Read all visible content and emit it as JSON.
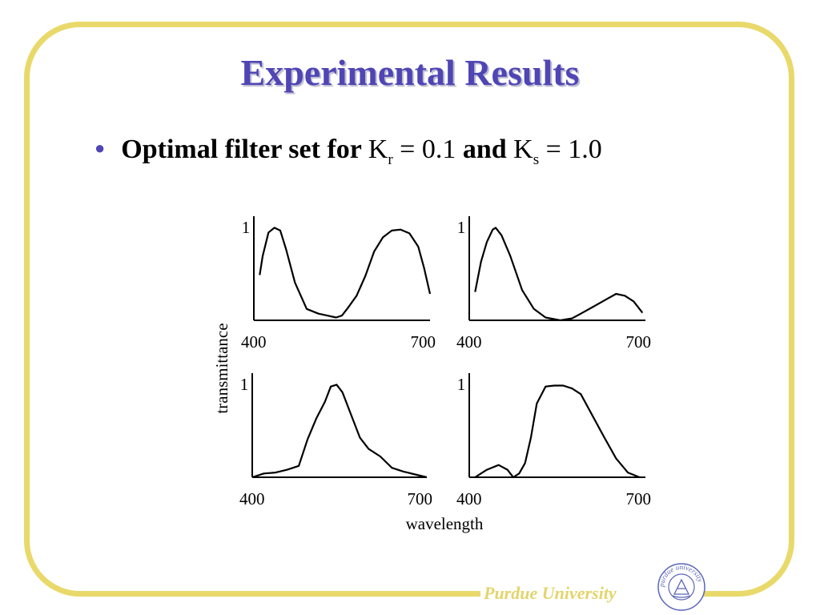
{
  "title": "Experimental Results",
  "bullet": {
    "text_before": "Optimal filter set for ",
    "kr_letter": "K",
    "kr_sub": "r",
    "kr_value": " = 0.1 ",
    "and_text": "and ",
    "ks_letter": "K",
    "ks_sub": "s",
    "ks_value": " = 1.0"
  },
  "footer": "Purdue University",
  "seal_text": "purdue university",
  "colors": {
    "title": "#4f45b5",
    "frame": "#e8d96a",
    "footer": "#e3d46b"
  },
  "chart_data": {
    "shared": {
      "ylabel": "transmittance",
      "xlabel": "wavelength"
    },
    "charts": [
      {
        "type": "line",
        "xlim": [
          400,
          700
        ],
        "ylim": [
          0,
          1
        ],
        "x_ticks": [
          "400",
          "700"
        ],
        "y_ticks": [
          "1"
        ],
        "x": [
          410,
          415,
          425,
          435,
          445,
          455,
          470,
          490,
          510,
          525,
          540,
          550,
          560,
          575,
          590,
          605,
          620,
          635,
          650,
          665,
          680,
          690,
          700
        ],
        "y": [
          0.48,
          0.68,
          0.93,
          0.98,
          0.95,
          0.75,
          0.4,
          0.12,
          0.07,
          0.05,
          0.03,
          0.05,
          0.13,
          0.26,
          0.47,
          0.73,
          0.88,
          0.95,
          0.96,
          0.92,
          0.78,
          0.55,
          0.28
        ]
      },
      {
        "type": "line",
        "xlim": [
          400,
          700
        ],
        "ylim": [
          0,
          1
        ],
        "x_ticks": [
          "400",
          "700"
        ],
        "y_ticks": [
          "1"
        ],
        "x": [
          410,
          420,
          430,
          440,
          445,
          455,
          470,
          490,
          510,
          530,
          555,
          575,
          590,
          610,
          630,
          650,
          665,
          680,
          695
        ],
        "y": [
          0.3,
          0.62,
          0.83,
          0.96,
          0.98,
          0.9,
          0.68,
          0.32,
          0.12,
          0.03,
          0.0,
          0.02,
          0.07,
          0.14,
          0.21,
          0.28,
          0.26,
          0.2,
          0.08
        ]
      },
      {
        "type": "line",
        "xlim": [
          400,
          700
        ],
        "ylim": [
          0,
          1
        ],
        "x_ticks": [
          "400",
          "700"
        ],
        "y_ticks": [
          "1"
        ],
        "x": [
          400,
          420,
          440,
          460,
          480,
          495,
          510,
          525,
          535,
          545,
          555,
          570,
          585,
          600,
          620,
          640,
          660,
          680,
          700
        ],
        "y": [
          0.0,
          0.04,
          0.05,
          0.08,
          0.12,
          0.4,
          0.62,
          0.8,
          0.96,
          0.98,
          0.9,
          0.66,
          0.42,
          0.3,
          0.22,
          0.1,
          0.06,
          0.03,
          0.0
        ]
      },
      {
        "type": "line",
        "xlim": [
          400,
          700
        ],
        "ylim": [
          0,
          1
        ],
        "x_ticks": [
          "400",
          "700"
        ],
        "y_ticks": [
          "1"
        ],
        "x": [
          410,
          430,
          450,
          465,
          475,
          485,
          495,
          505,
          515,
          530,
          545,
          560,
          575,
          590,
          610,
          630,
          650,
          670,
          690
        ],
        "y": [
          0.0,
          0.08,
          0.13,
          0.08,
          0.0,
          0.04,
          0.15,
          0.42,
          0.78,
          0.96,
          0.97,
          0.97,
          0.94,
          0.88,
          0.65,
          0.42,
          0.2,
          0.05,
          0.0
        ]
      }
    ]
  }
}
